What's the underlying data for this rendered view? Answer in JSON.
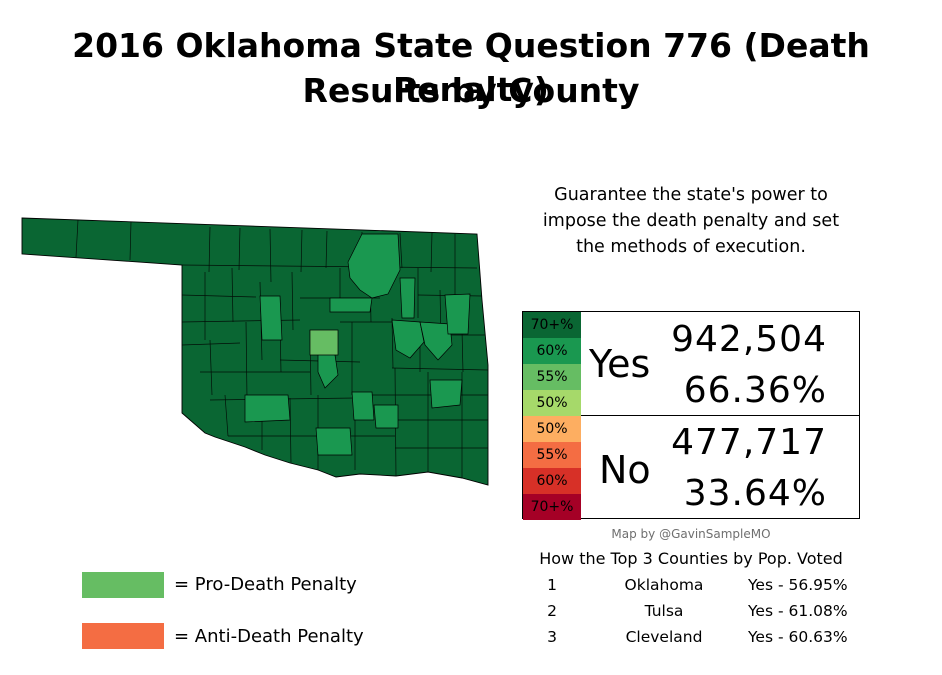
{
  "title": {
    "line1": "2016 Oklahoma State Question 776 (Death Penalty)",
    "line2": "Results by County"
  },
  "question": {
    "line1": "Guarantee the state's power to",
    "line2": "impose the death penalty and set",
    "line3": "the methods of execution."
  },
  "color_scale": [
    {
      "label": "70+%",
      "color": "#0a6633"
    },
    {
      "label": "60%",
      "color": "#1a9850"
    },
    {
      "label": "55%",
      "color": "#66bd63"
    },
    {
      "label": "50%",
      "color": "#a6d96a"
    },
    {
      "label": "50%",
      "color": "#fdae61"
    },
    {
      "label": "55%",
      "color": "#f46d43"
    },
    {
      "label": "60%",
      "color": "#d73027"
    },
    {
      "label": "70+%",
      "color": "#a50026"
    }
  ],
  "results": {
    "yes": {
      "label": "Yes",
      "votes": "942,504",
      "percent": "66.36%"
    },
    "no": {
      "label": "No",
      "votes": "477,717",
      "percent": "33.64%"
    }
  },
  "credit": "Map by @GavinSampleMO",
  "top_counties": {
    "heading": "How the Top 3 Counties by Pop. Voted",
    "rows": [
      {
        "rank": "1",
        "county": "Oklahoma",
        "result": "Yes - 56.95%"
      },
      {
        "rank": "2",
        "county": "Tulsa",
        "result": "Yes - 61.08%"
      },
      {
        "rank": "3",
        "county": "Cleveland",
        "result": "Yes - 60.63%"
      }
    ]
  },
  "key": {
    "pro": {
      "label": "=  Pro-Death Penalty",
      "color": "#66bd63"
    },
    "anti": {
      "label": "=  Anti-Death Penalty",
      "color": "#f46d43"
    }
  },
  "map": {
    "base_color": "#0a6633",
    "county_line_color": "#000000"
  }
}
